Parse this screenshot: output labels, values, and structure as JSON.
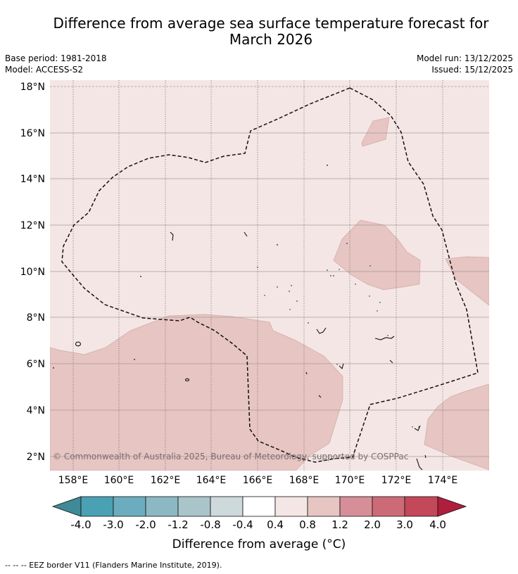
{
  "header": {
    "title_line1": "Difference from average sea surface temperature forecast for",
    "title_line2": "March 2026",
    "base_period": "Base period: 1981-2018",
    "model": "Model: ACCESS-S2",
    "model_run": "Model run: 13/12/2025",
    "issued": "Issued: 15/12/2025"
  },
  "map": {
    "lat_labels": [
      "18°N",
      "16°N",
      "14°N",
      "12°N",
      "10°N",
      "8°N",
      "6°N",
      "4°N",
      "2°N"
    ],
    "lon_labels": [
      "158°E",
      "160°E",
      "162°E",
      "164°E",
      "166°E",
      "168°E",
      "170°E",
      "172°E",
      "174°E"
    ],
    "copyright": "© Commonwealth of Australia 2025, Bureau of Meteorology, supported by COSPPac",
    "background_color": "#f4e6e5",
    "anomaly_fill_color": "#e6c5c2"
  },
  "colorbar": {
    "labels": [
      "-4.0",
      "-3.0",
      "-2.0",
      "-1.2",
      "-0.8",
      "-0.4",
      "0.4",
      "0.8",
      "1.2",
      "2.0",
      "3.0",
      "4.0"
    ],
    "colors": [
      "#3f8a96",
      "#4aa1b3",
      "#6badbe",
      "#8cb8c4",
      "#a9c5ca",
      "#cdd9db",
      "#ffffff",
      "#f4e6e5",
      "#e6c5c2",
      "#d68f98",
      "#cc6b77",
      "#c3485a",
      "#b01e3d"
    ],
    "title": "Difference from average (°C)"
  },
  "footnote": "--  --  -- EEZ border V11 (Flanders Marine Institute, 2019)."
}
